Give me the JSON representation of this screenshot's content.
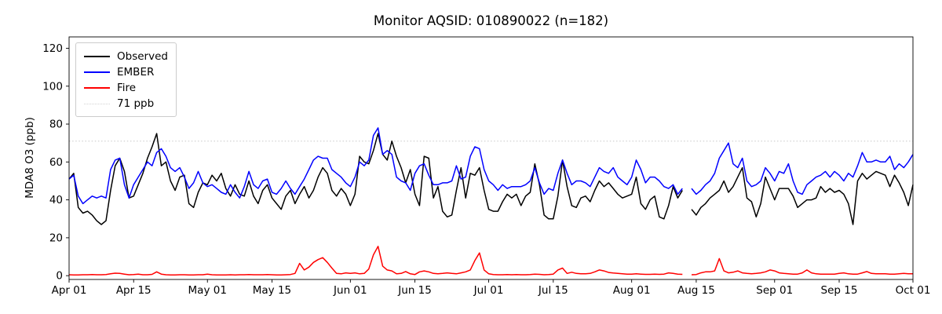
{
  "chart_data": {
    "type": "line",
    "title": "Monitor AQSID: 010890022 (n=182)",
    "xlabel": "",
    "ylabel": "MDA8 O3 (ppb)",
    "x_unit": "day index from Apr 01",
    "x_tick_labels": [
      {
        "label": "Apr 01",
        "day": 0
      },
      {
        "label": "Apr 15",
        "day": 14
      },
      {
        "label": "May 01",
        "day": 30
      },
      {
        "label": "May 15",
        "day": 44
      },
      {
        "label": "Jun 01",
        "day": 61
      },
      {
        "label": "Jun 15",
        "day": 75
      },
      {
        "label": "Jul 01",
        "day": 91
      },
      {
        "label": "Jul 15",
        "day": 105
      },
      {
        "label": "Aug 01",
        "day": 122
      },
      {
        "label": "Aug 15",
        "day": 136
      },
      {
        "label": "Sep 01",
        "day": 153
      },
      {
        "label": "Sep 15",
        "day": 167
      },
      {
        "label": "Oct 01",
        "day": 183
      }
    ],
    "y_ticks": [
      0,
      20,
      40,
      60,
      80,
      100,
      120
    ],
    "xlim": [
      0,
      183
    ],
    "ylim": [
      -2,
      126
    ],
    "grid": false,
    "legend_position": "upper left",
    "threshold": {
      "label": "71 ppb",
      "value": 71,
      "color": "#d3d3d3",
      "style": "dotted"
    },
    "legend": [
      {
        "label": "Observed",
        "color": "#000000",
        "style": "solid"
      },
      {
        "label": "EMBER",
        "color": "#0000ff",
        "style": "solid"
      },
      {
        "label": "Fire",
        "color": "#ff0000",
        "style": "solid"
      },
      {
        "label": "71 ppb",
        "color": "#d3d3d3",
        "style": "dotted"
      }
    ],
    "series": [
      {
        "name": "Observed",
        "color": "#000000",
        "values": [
          51,
          54,
          36,
          33,
          34,
          32,
          29,
          27,
          29,
          45,
          58,
          62,
          55,
          41,
          42,
          48,
          54,
          62,
          68,
          75,
          58,
          60,
          50,
          45,
          52,
          53,
          38,
          36,
          44,
          49,
          48,
          53,
          50,
          54,
          46,
          42,
          48,
          43,
          42,
          50,
          42,
          38,
          45,
          48,
          41,
          38,
          35,
          42,
          45,
          38,
          43,
          47,
          41,
          45,
          52,
          57,
          54,
          45,
          42,
          46,
          43,
          37,
          43,
          63,
          60,
          59,
          66,
          75,
          64,
          61,
          71,
          63,
          57,
          49,
          56,
          43,
          37,
          63,
          62,
          41,
          47,
          34,
          31,
          32,
          45,
          57,
          41,
          54,
          53,
          57,
          45,
          35,
          34,
          34,
          39,
          43,
          41,
          43,
          37,
          42,
          44,
          59,
          48,
          32,
          30,
          30,
          42,
          61,
          47,
          37,
          36,
          41,
          42,
          39,
          45,
          50,
          47,
          49,
          46,
          43,
          41,
          42,
          43,
          52,
          38,
          35,
          40,
          42,
          31,
          30,
          37,
          47,
          41,
          45,
          null,
          35,
          32,
          36,
          38,
          41,
          43,
          45,
          50,
          44,
          47,
          52,
          57,
          41,
          39,
          31,
          38,
          52,
          46,
          40,
          46,
          46,
          46,
          42,
          36,
          38,
          40,
          40,
          41,
          47,
          44,
          46,
          44,
          45,
          43,
          38,
          27,
          50,
          54,
          51,
          53,
          55,
          54,
          53,
          47,
          53,
          49,
          44,
          37,
          48
        ]
      },
      {
        "name": "EMBER",
        "color": "#0000ff",
        "values": [
          51,
          53,
          42,
          38,
          40,
          42,
          41,
          42,
          41,
          56,
          61,
          62,
          48,
          41,
          48,
          52,
          56,
          60,
          58,
          65,
          67,
          63,
          57,
          55,
          57,
          52,
          46,
          49,
          55,
          49,
          47,
          48,
          46,
          44,
          43,
          48,
          44,
          41,
          47,
          55,
          48,
          46,
          50,
          51,
          44,
          43,
          46,
          50,
          46,
          43,
          47,
          51,
          56,
          61,
          63,
          62,
          62,
          56,
          54,
          52,
          49,
          47,
          52,
          60,
          58,
          61,
          74,
          78,
          64,
          66,
          64,
          52,
          50,
          49,
          45,
          54,
          58,
          59,
          53,
          48,
          48,
          49,
          49,
          50,
          58,
          51,
          52,
          63,
          68,
          67,
          56,
          50,
          48,
          45,
          48,
          46,
          47,
          47,
          47,
          48,
          50,
          57,
          49,
          43,
          46,
          45,
          54,
          61,
          54,
          48,
          50,
          50,
          49,
          47,
          52,
          57,
          55,
          54,
          57,
          52,
          50,
          48,
          52,
          61,
          56,
          49,
          52,
          52,
          50,
          47,
          46,
          48,
          43,
          46,
          null,
          46,
          43,
          45,
          48,
          50,
          54,
          62,
          66,
          70,
          59,
          57,
          62,
          50,
          47,
          48,
          50,
          57,
          54,
          50,
          55,
          54,
          59,
          50,
          44,
          43,
          48,
          50,
          52,
          53,
          55,
          52,
          55,
          53,
          50,
          54,
          52,
          58,
          65,
          60,
          60,
          61,
          60,
          60,
          63,
          56,
          59,
          57,
          60,
          64
        ]
      },
      {
        "name": "Fire",
        "color": "#ff0000",
        "values": [
          0.5,
          0.4,
          0.4,
          0.5,
          0.5,
          0.6,
          0.5,
          0.5,
          0.6,
          1.0,
          1.3,
          1.2,
          0.8,
          0.5,
          0.6,
          0.8,
          0.5,
          0.5,
          0.7,
          2.0,
          0.8,
          0.5,
          0.4,
          0.4,
          0.5,
          0.5,
          0.4,
          0.4,
          0.5,
          0.5,
          0.8,
          0.5,
          0.4,
          0.4,
          0.4,
          0.5,
          0.4,
          0.5,
          0.5,
          0.6,
          0.5,
          0.5,
          0.5,
          0.6,
          0.5,
          0.4,
          0.4,
          0.5,
          0.6,
          1.2,
          6.5,
          3.0,
          4.5,
          7.0,
          8.5,
          9.5,
          7.0,
          4.0,
          1.2,
          1.0,
          1.5,
          1.2,
          1.5,
          1.0,
          1.2,
          3.5,
          11.0,
          15.5,
          5.0,
          3.0,
          2.5,
          1.0,
          1.2,
          2.2,
          1.0,
          0.6,
          2.0,
          2.5,
          2.0,
          1.2,
          1.0,
          1.2,
          1.5,
          1.2,
          1.0,
          1.5,
          2.0,
          3.0,
          8.0,
          12.0,
          3.0,
          1.0,
          0.6,
          0.5,
          0.5,
          0.6,
          0.5,
          0.6,
          0.5,
          0.5,
          0.6,
          0.8,
          0.7,
          0.5,
          0.6,
          0.8,
          3.0,
          4.0,
          1.2,
          1.8,
          1.2,
          1.0,
          1.0,
          1.2,
          2.0,
          3.0,
          2.5,
          1.7,
          1.4,
          1.2,
          1.0,
          0.8,
          0.8,
          1.0,
          0.8,
          0.7,
          0.7,
          0.8,
          0.7,
          0.8,
          1.5,
          1.2,
          0.8,
          0.7,
          null,
          0.5,
          0.6,
          1.5,
          2.0,
          2.0,
          2.5,
          9.0,
          2.5,
          1.5,
          1.8,
          2.5,
          1.5,
          1.2,
          1.0,
          1.2,
          1.5,
          2.0,
          3.0,
          2.5,
          1.5,
          1.2,
          1.0,
          0.8,
          0.8,
          1.5,
          3.0,
          1.5,
          1.0,
          0.8,
          0.8,
          0.8,
          0.8,
          1.2,
          1.5,
          1.0,
          0.8,
          0.8,
          1.5,
          2.2,
          1.2,
          1.0,
          1.0,
          1.0,
          0.8,
          0.8,
          1.0,
          1.2,
          1.0,
          1.0
        ]
      }
    ]
  }
}
